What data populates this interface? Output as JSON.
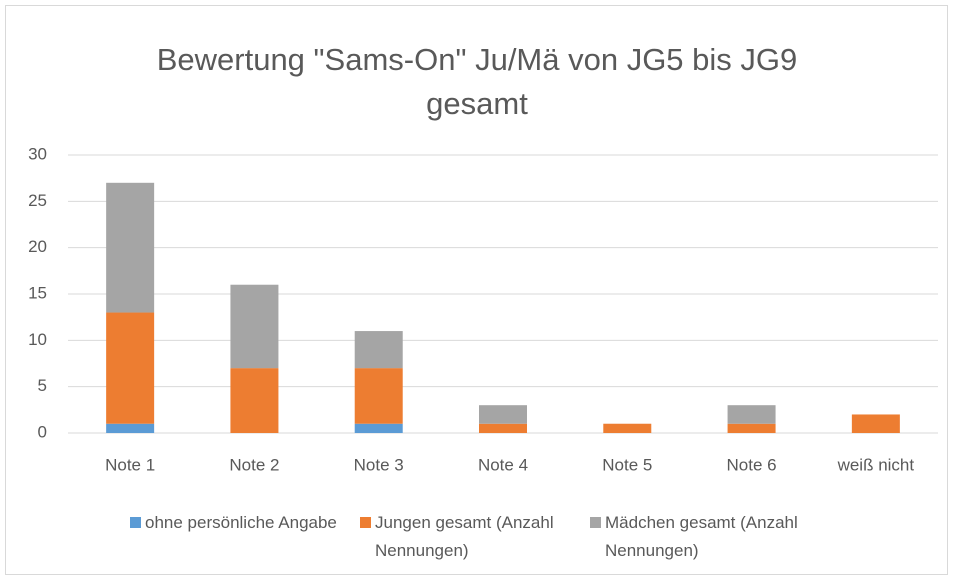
{
  "chart_data": {
    "type": "bar",
    "stacked": true,
    "title": "Bewertung \"Sams-On\" Ju/Mä von JG5 bis JG9 gesamt",
    "categories": [
      "Note 1",
      "Note 2",
      "Note 3",
      "Note 4",
      "Note 5",
      "Note 6",
      "weiß nicht"
    ],
    "series": [
      {
        "name": "ohne persönliche Angabe",
        "color": "#5b9bd5",
        "values": [
          1,
          0,
          1,
          0,
          0,
          0,
          0
        ]
      },
      {
        "name": "Jungen gesamt (Anzahl Nennungen)",
        "color": "#ed7d31",
        "values": [
          12,
          7,
          6,
          1,
          1,
          1,
          2
        ]
      },
      {
        "name": "Mädchen gesamt (Anzahl Nennungen)",
        "color": "#a5a5a5",
        "values": [
          14,
          9,
          4,
          2,
          0,
          2,
          0
        ]
      }
    ],
    "ylim": [
      0,
      30
    ],
    "yticks": [
      0,
      5,
      10,
      15,
      20,
      25,
      30
    ],
    "grid": true,
    "legend": "bottom"
  }
}
